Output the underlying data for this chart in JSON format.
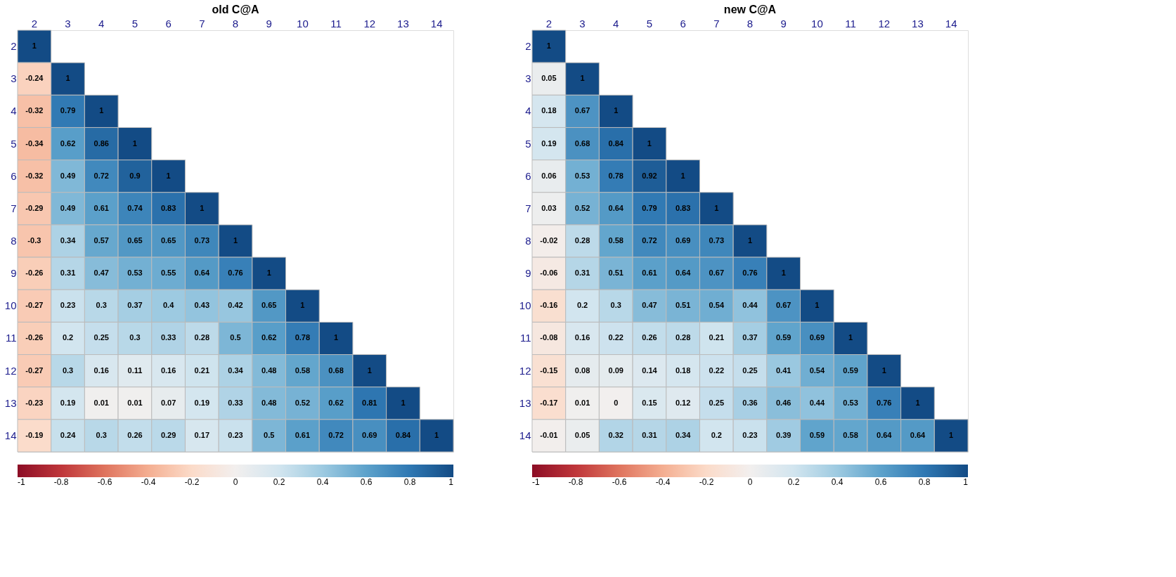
{
  "chart_data": [
    {
      "type": "heatmap",
      "title": "old C@A",
      "categories": [
        "2",
        "3",
        "4",
        "5",
        "6",
        "7",
        "8",
        "9",
        "10",
        "11",
        "12",
        "13",
        "14"
      ],
      "y_categories": [
        "2",
        "3",
        "4",
        "5",
        "6",
        "7",
        "8",
        "9",
        "10",
        "11",
        "12",
        "13",
        "14"
      ],
      "cells": [
        [
          1,
          null,
          null,
          null,
          null,
          null,
          null,
          null,
          null,
          null,
          null,
          null,
          null
        ],
        [
          -0.24,
          1,
          null,
          null,
          null,
          null,
          null,
          null,
          null,
          null,
          null,
          null,
          null
        ],
        [
          -0.32,
          0.79,
          1,
          null,
          null,
          null,
          null,
          null,
          null,
          null,
          null,
          null,
          null
        ],
        [
          -0.34,
          0.62,
          0.86,
          1,
          null,
          null,
          null,
          null,
          null,
          null,
          null,
          null,
          null
        ],
        [
          -0.32,
          0.49,
          0.72,
          0.9,
          1,
          null,
          null,
          null,
          null,
          null,
          null,
          null,
          null
        ],
        [
          -0.29,
          0.49,
          0.61,
          0.74,
          0.83,
          1,
          null,
          null,
          null,
          null,
          null,
          null,
          null
        ],
        [
          -0.3,
          0.34,
          0.57,
          0.65,
          0.65,
          0.73,
          1,
          null,
          null,
          null,
          null,
          null,
          null
        ],
        [
          -0.26,
          0.31,
          0.47,
          0.53,
          0.55,
          0.64,
          0.76,
          1,
          null,
          null,
          null,
          null,
          null
        ],
        [
          -0.27,
          0.23,
          0.3,
          0.37,
          0.4,
          0.43,
          0.42,
          0.65,
          1,
          null,
          null,
          null,
          null
        ],
        [
          -0.26,
          0.2,
          0.25,
          0.3,
          0.33,
          0.28,
          0.5,
          0.62,
          0.78,
          1,
          null,
          null,
          null
        ],
        [
          -0.27,
          0.3,
          0.16,
          0.11,
          0.16,
          0.21,
          0.34,
          0.48,
          0.58,
          0.68,
          1,
          null,
          null
        ],
        [
          -0.23,
          0.19,
          0.01,
          0.01,
          0.07,
          0.19,
          0.33,
          0.48,
          0.52,
          0.62,
          0.81,
          1,
          null
        ],
        [
          -0.19,
          0.24,
          0.3,
          0.26,
          0.29,
          0.17,
          0.23,
          0.5,
          0.61,
          0.72,
          0.69,
          0.84,
          1
        ]
      ],
      "clim": [
        -1,
        1
      ],
      "cticks": [
        -1,
        -0.8,
        -0.6,
        -0.4,
        -0.2,
        0,
        0.2,
        0.4,
        0.6,
        0.8,
        1
      ],
      "data_labels": true
    },
    {
      "type": "heatmap",
      "title": "new C@A",
      "categories": [
        "2",
        "3",
        "4",
        "5",
        "6",
        "7",
        "8",
        "9",
        "10",
        "11",
        "12",
        "13",
        "14"
      ],
      "y_categories": [
        "2",
        "3",
        "4",
        "5",
        "6",
        "7",
        "8",
        "9",
        "10",
        "11",
        "12",
        "13",
        "14"
      ],
      "cells": [
        [
          1,
          null,
          null,
          null,
          null,
          null,
          null,
          null,
          null,
          null,
          null,
          null,
          null
        ],
        [
          0.05,
          1,
          null,
          null,
          null,
          null,
          null,
          null,
          null,
          null,
          null,
          null,
          null
        ],
        [
          0.18,
          0.67,
          1,
          null,
          null,
          null,
          null,
          null,
          null,
          null,
          null,
          null,
          null
        ],
        [
          0.19,
          0.68,
          0.84,
          1,
          null,
          null,
          null,
          null,
          null,
          null,
          null,
          null,
          null
        ],
        [
          0.06,
          0.53,
          0.78,
          0.92,
          1,
          null,
          null,
          null,
          null,
          null,
          null,
          null,
          null
        ],
        [
          0.03,
          0.52,
          0.64,
          0.79,
          0.83,
          1,
          null,
          null,
          null,
          null,
          null,
          null,
          null
        ],
        [
          -0.02,
          0.28,
          0.58,
          0.72,
          0.69,
          0.73,
          1,
          null,
          null,
          null,
          null,
          null,
          null
        ],
        [
          -0.06,
          0.31,
          0.51,
          0.61,
          0.64,
          0.67,
          0.76,
          1,
          null,
          null,
          null,
          null,
          null
        ],
        [
          -0.16,
          0.2,
          0.3,
          0.47,
          0.51,
          0.54,
          0.44,
          0.67,
          1,
          null,
          null,
          null,
          null
        ],
        [
          -0.08,
          0.16,
          0.22,
          0.26,
          0.28,
          0.21,
          0.37,
          0.59,
          0.69,
          1,
          null,
          null,
          null
        ],
        [
          -0.15,
          0.08,
          0.09,
          0.14,
          0.18,
          0.22,
          0.25,
          0.41,
          0.54,
          0.59,
          1,
          null,
          null
        ],
        [
          -0.17,
          0.01,
          0,
          0.15,
          0.12,
          0.25,
          0.36,
          0.46,
          0.44,
          0.53,
          0.76,
          1,
          null
        ],
        [
          -0.01,
          0.05,
          0.32,
          0.31,
          0.34,
          0.2,
          0.23,
          0.39,
          0.59,
          0.58,
          0.64,
          0.64,
          1
        ]
      ],
      "clim": [
        -1,
        1
      ],
      "cticks": [
        -1,
        -0.8,
        -0.6,
        -0.4,
        -0.2,
        0,
        0.2,
        0.4,
        0.6,
        0.8,
        1
      ],
      "data_labels": true
    }
  ]
}
